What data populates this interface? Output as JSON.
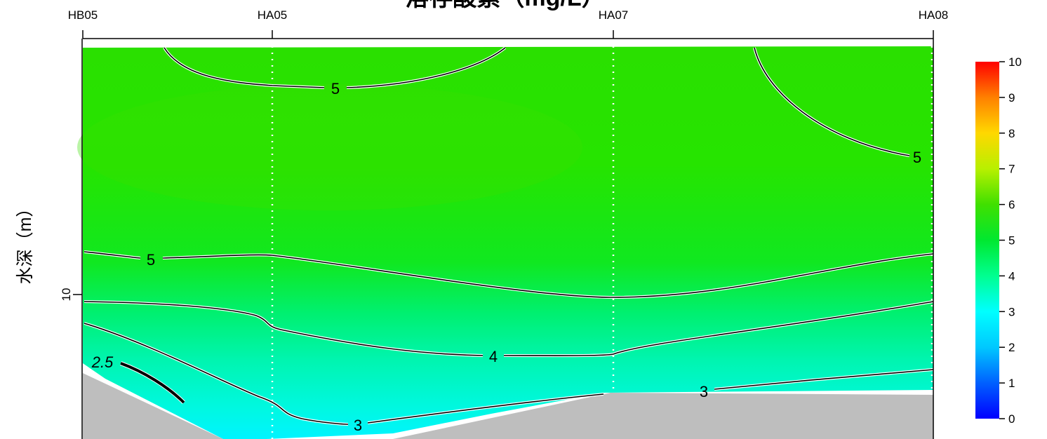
{
  "chart_data": {
    "type": "heatmap",
    "title": "溶存酸素（mg/L）",
    "ylabel": "水深（m）",
    "stations": [
      "HB05",
      "HA05",
      "HA07",
      "HA08"
    ],
    "y_ticks": [
      "10"
    ],
    "colorbar": {
      "min": 0,
      "max": 10,
      "ticks": [
        "0",
        "1",
        "2",
        "3",
        "4",
        "5",
        "6",
        "7",
        "8",
        "9",
        "10"
      ],
      "colors": [
        "#0000ff",
        "#00c8ff",
        "#00ffff",
        "#00ff99",
        "#00e840",
        "#1ee000",
        "#7ff000",
        "#f5f500",
        "#ff9800",
        "#ff2a00"
      ]
    },
    "contours": [
      {
        "level": 5,
        "label": "5"
      },
      {
        "level": 5,
        "label": "5"
      },
      {
        "level": 5,
        "label": "5"
      },
      {
        "level": 4,
        "label": "4"
      },
      {
        "level": 3,
        "label": "3"
      },
      {
        "level": 3,
        "label": "3"
      },
      {
        "level": 2.5,
        "label": "2.5"
      }
    ],
    "seabed_color": "#bebebe"
  }
}
